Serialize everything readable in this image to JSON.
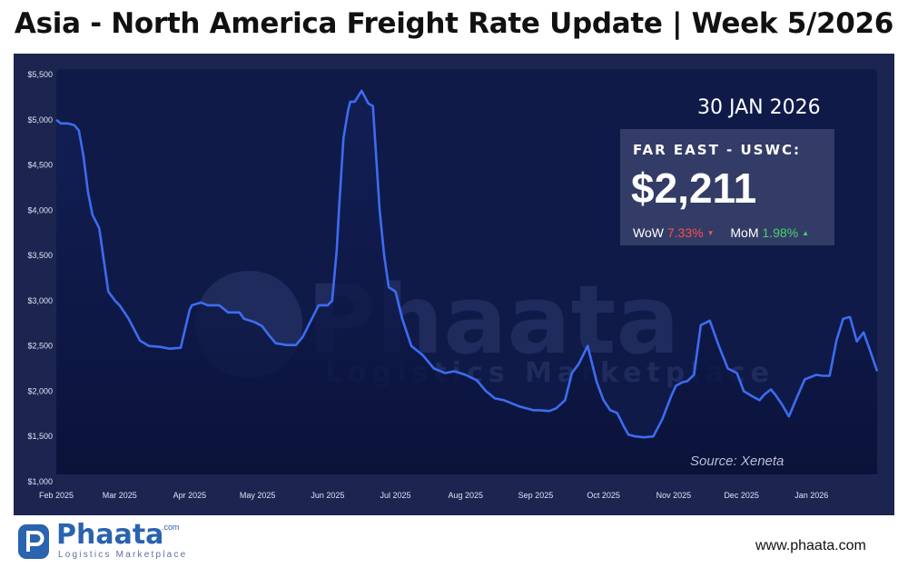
{
  "title": "Asia - North America Freight Rate Update | Week 5/2026",
  "date_label": "30 JAN 2026",
  "price_box": {
    "route": "FAR EAST - USWC:",
    "price": "$2,211",
    "wow_label": "WoW",
    "wow_value": "7.33%",
    "wow_direction": "down",
    "mom_label": "MoM",
    "mom_value": "1.98%",
    "mom_direction": "up"
  },
  "source": "Source: Xeneta",
  "footer": {
    "brand": "Phaata",
    "brand_suffix": ".com",
    "tagline": "Logistics Marketplace",
    "url": "www.phaata.com"
  },
  "colors": {
    "background": "#1c2550",
    "plot_background": "#0f1a48",
    "line": "#3d6cf0",
    "down": "#ff4d4d",
    "up": "#45d36a"
  },
  "chart_data": {
    "type": "line",
    "title": "",
    "xlabel": "",
    "ylabel": "",
    "ylim": [
      1000,
      5500
    ],
    "y_ticks": [
      1000,
      1500,
      2000,
      2500,
      3000,
      3500,
      4000,
      4500,
      5000,
      5500
    ],
    "y_tick_labels": [
      "$1,000",
      "$1,500",
      "$2,000",
      "$2,500",
      "$3,000",
      "$3,500",
      "$4,000",
      "$4,500",
      "$5,000",
      "$5,500"
    ],
    "x_range": [
      "2025-02-01",
      "2026-01-30"
    ],
    "x_ticks": [
      "2025-02-01",
      "2025-03-01",
      "2025-04-01",
      "2025-05-01",
      "2025-06-01",
      "2025-07-01",
      "2025-08-01",
      "2025-09-01",
      "2025-10-01",
      "2025-11-01",
      "2025-12-01",
      "2026-01-01"
    ],
    "x_tick_labels": [
      "Feb 2025",
      "Mar 2025",
      "Apr 2025",
      "May 2025",
      "Jun 2025",
      "Jul 2025",
      "Aug 2025",
      "Sep 2025",
      "Oct 2025",
      "Nov 2025",
      "Dec 2025",
      "Jan 2026"
    ],
    "grid": false,
    "legend": "none",
    "series": [
      {
        "x": [
          "2025-02-01",
          "2025-02-03",
          "2025-02-06",
          "2025-02-09",
          "2025-02-11",
          "2025-02-13",
          "2025-02-15",
          "2025-02-17",
          "2025-02-20",
          "2025-02-24",
          "2025-02-27",
          "2025-03-01",
          "2025-03-05",
          "2025-03-10",
          "2025-03-14",
          "2025-03-19",
          "2025-03-23",
          "2025-03-28",
          "2025-04-01",
          "2025-04-02",
          "2025-04-06",
          "2025-04-09",
          "2025-04-14",
          "2025-04-18",
          "2025-04-23",
          "2025-04-25",
          "2025-04-30",
          "2025-05-03",
          "2025-05-06",
          "2025-05-09",
          "2025-05-14",
          "2025-05-18",
          "2025-05-21",
          "2025-05-25",
          "2025-05-28",
          "2025-06-01",
          "2025-06-03",
          "2025-06-05",
          "2025-06-06",
          "2025-06-08",
          "2025-06-10",
          "2025-06-11",
          "2025-06-13",
          "2025-06-16",
          "2025-06-19",
          "2025-06-21",
          "2025-06-24",
          "2025-06-26",
          "2025-06-28",
          "2025-07-01",
          "2025-07-04",
          "2025-07-08",
          "2025-07-13",
          "2025-07-18",
          "2025-07-23",
          "2025-07-27",
          "2025-08-01",
          "2025-08-06",
          "2025-08-10",
          "2025-08-14",
          "2025-08-18",
          "2025-08-22",
          "2025-08-25",
          "2025-08-28",
          "2025-08-31",
          "2025-09-03",
          "2025-09-07",
          "2025-09-10",
          "2025-09-14",
          "2025-09-17",
          "2025-09-20",
          "2025-09-24",
          "2025-09-28",
          "2025-10-01",
          "2025-10-04",
          "2025-10-07",
          "2025-10-10",
          "2025-10-12",
          "2025-10-15",
          "2025-10-19",
          "2025-10-23",
          "2025-10-27",
          "2025-10-31",
          "2025-11-02",
          "2025-11-05",
          "2025-11-07",
          "2025-11-10",
          "2025-11-13",
          "2025-11-17",
          "2025-11-21",
          "2025-11-25",
          "2025-11-29",
          "2025-12-02",
          "2025-12-06",
          "2025-12-09",
          "2025-12-11",
          "2025-12-14",
          "2025-12-16",
          "2025-12-19",
          "2025-12-22",
          "2025-12-25",
          "2025-12-29",
          "2026-01-01",
          "2026-01-03",
          "2026-01-06",
          "2026-01-09",
          "2026-01-12",
          "2026-01-15",
          "2026-01-18",
          "2026-01-21",
          "2026-01-24",
          "2026-01-27",
          "2026-01-30"
        ],
        "values": [
          5000,
          4960,
          4960,
          4940,
          4880,
          4600,
          4200,
          3950,
          3800,
          3100,
          3000,
          2950,
          2800,
          2560,
          2500,
          2490,
          2470,
          2480,
          2900,
          2950,
          2980,
          2950,
          2950,
          2870,
          2870,
          2800,
          2760,
          2720,
          2620,
          2530,
          2510,
          2510,
          2600,
          2800,
          2950,
          2950,
          3000,
          3550,
          4000,
          4800,
          5100,
          5200,
          5200,
          5320,
          5180,
          5150,
          4000,
          3500,
          3150,
          3100,
          2800,
          2500,
          2400,
          2250,
          2200,
          2220,
          2180,
          2120,
          2000,
          1920,
          1900,
          1860,
          1830,
          1810,
          1790,
          1790,
          1780,
          1810,
          1900,
          2200,
          2300,
          2500,
          2100,
          1900,
          1790,
          1760,
          1610,
          1520,
          1500,
          1490,
          1500,
          1690,
          1950,
          2060,
          2100,
          2110,
          2180,
          2730,
          2780,
          2500,
          2250,
          2200,
          2000,
          1940,
          1900,
          1960,
          2020,
          1960,
          1850,
          1720,
          1900,
          2130,
          2160,
          2180,
          2170,
          2170,
          2560,
          2800,
          2820,
          2550,
          2650,
          2440,
          2220
        ]
      }
    ]
  }
}
